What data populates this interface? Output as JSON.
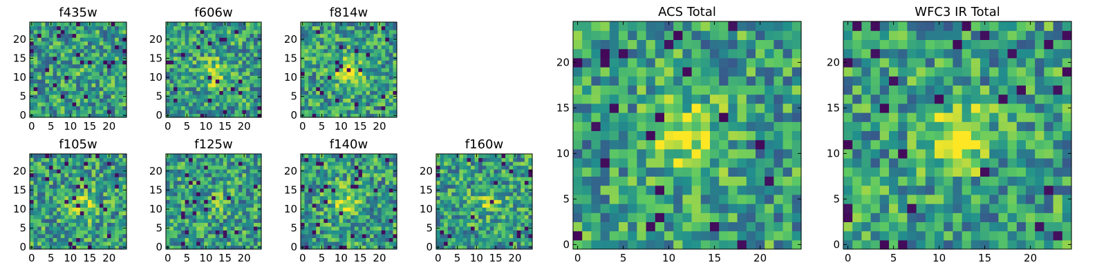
{
  "figure": {
    "colormap": "viridis",
    "colormap_stops": [
      "#440154",
      "#3b528b",
      "#21908d",
      "#5dc963",
      "#fde725"
    ]
  },
  "chart_data": [
    {
      "type": "heatmap",
      "title": "f435w",
      "size": 25,
      "xlim": [
        -0.5,
        24.5
      ],
      "ylim": [
        -0.5,
        24.5
      ],
      "xticks": [
        0,
        5,
        10,
        15,
        20
      ],
      "yticks": [
        0,
        5,
        10,
        15,
        20
      ],
      "peak": [
        12,
        11
      ],
      "peak_strength": 0.05,
      "seed": 11
    },
    {
      "type": "heatmap",
      "title": "f606w",
      "size": 25,
      "xlim": [
        -0.5,
        24.5
      ],
      "ylim": [
        -0.5,
        24.5
      ],
      "xticks": [
        0,
        5,
        10,
        15,
        20
      ],
      "yticks": [
        0,
        5,
        10,
        15,
        20
      ],
      "peak": [
        12,
        11
      ],
      "peak_strength": 0.3,
      "seed": 22
    },
    {
      "type": "heatmap",
      "title": "f814w",
      "size": 25,
      "xlim": [
        -0.5,
        24.5
      ],
      "ylim": [
        -0.5,
        24.5
      ],
      "xticks": [
        0,
        5,
        10,
        15,
        20
      ],
      "yticks": [
        0,
        5,
        10,
        15,
        20
      ],
      "peak": [
        12,
        11
      ],
      "peak_strength": 0.35,
      "seed": 33
    },
    {
      "type": "heatmap",
      "title": "f105w",
      "size": 25,
      "xlim": [
        -0.5,
        24.5
      ],
      "ylim": [
        -0.5,
        24.5
      ],
      "xticks": [
        0,
        5,
        10,
        15,
        20
      ],
      "yticks": [
        0,
        5,
        10,
        15,
        20
      ],
      "peak": [
        14,
        11
      ],
      "peak_strength": 0.25,
      "seed": 44
    },
    {
      "type": "heatmap",
      "title": "f125w",
      "size": 25,
      "xlim": [
        -0.5,
        24.5
      ],
      "ylim": [
        -0.5,
        24.5
      ],
      "xticks": [
        0,
        5,
        10,
        15,
        20
      ],
      "yticks": [
        0,
        5,
        10,
        15,
        20
      ],
      "peak": [
        12,
        12
      ],
      "peak_strength": 0.1,
      "seed": 55
    },
    {
      "type": "heatmap",
      "title": "f140w",
      "size": 25,
      "xlim": [
        -0.5,
        24.5
      ],
      "ylim": [
        -0.5,
        24.5
      ],
      "xticks": [
        0,
        5,
        10,
        15,
        20
      ],
      "yticks": [
        0,
        5,
        10,
        15,
        20
      ],
      "peak": [
        11,
        12
      ],
      "peak_strength": 0.3,
      "seed": 66
    },
    {
      "type": "heatmap",
      "title": "f160w",
      "size": 25,
      "xlim": [
        -0.5,
        24.5
      ],
      "ylim": [
        -0.5,
        24.5
      ],
      "xticks": [
        0,
        5,
        10,
        15,
        20
      ],
      "yticks": [
        0,
        5,
        10,
        15,
        20
      ],
      "peak": [
        13,
        12
      ],
      "peak_strength": 0.2,
      "seed": 77
    },
    {
      "type": "heatmap",
      "title": "ACS Total",
      "size": 25,
      "xlim": [
        -0.5,
        24.5
      ],
      "ylim": [
        -0.5,
        24.5
      ],
      "xticks": [
        0,
        5,
        10,
        15,
        20
      ],
      "yticks": [
        0,
        5,
        10,
        15,
        20
      ],
      "peak": [
        12,
        12
      ],
      "peak_strength": 0.4,
      "seed": 88
    },
    {
      "type": "heatmap",
      "title": "WFC3 IR Total",
      "size": 25,
      "xlim": [
        -0.5,
        24.5
      ],
      "ylim": [
        -0.5,
        24.5
      ],
      "xticks": [
        0,
        5,
        10,
        15,
        20
      ],
      "yticks": [
        0,
        5,
        10,
        15,
        20
      ],
      "peak": [
        12,
        12
      ],
      "peak_strength": 0.4,
      "seed": 99
    }
  ]
}
